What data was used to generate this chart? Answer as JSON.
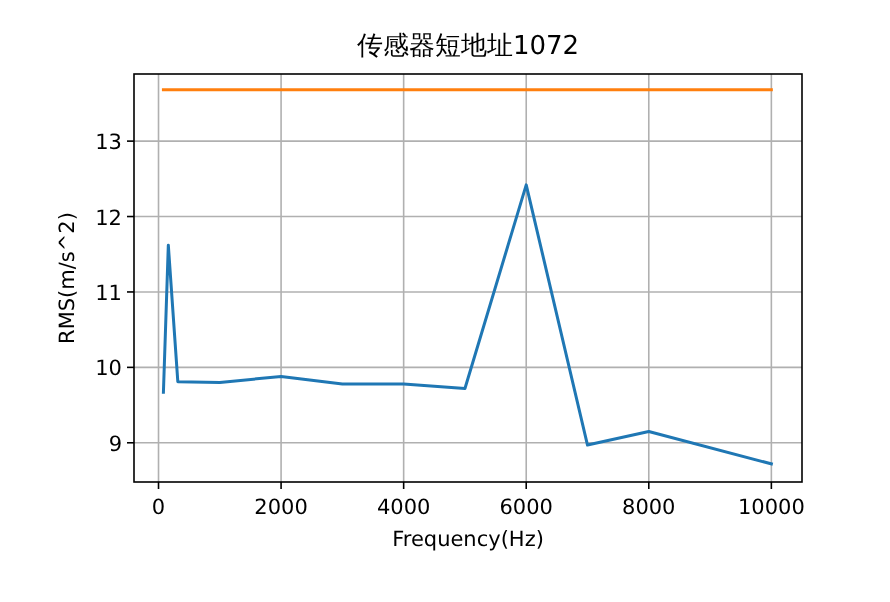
{
  "chart_data": {
    "type": "line",
    "title": "传感器短地址1072",
    "xlabel": "Frequency(Hz)",
    "ylabel": "RMS(m/s^2)",
    "xlim": [
      -400,
      10500
    ],
    "ylim": [
      8.48,
      13.89
    ],
    "xticks": [
      0,
      2000,
      4000,
      6000,
      8000,
      10000
    ],
    "yticks": [
      9,
      10,
      11,
      12,
      13
    ],
    "grid": true,
    "series": [
      {
        "color": "#1f77b4",
        "x": [
          80,
          160,
          315,
          1000,
          2000,
          3000,
          4000,
          5000,
          6000,
          7000,
          8000,
          10000
        ],
        "values": [
          9.67,
          11.62,
          9.81,
          9.8,
          9.88,
          9.78,
          9.78,
          9.72,
          12.42,
          8.97,
          9.15,
          8.72
        ]
      },
      {
        "color": "#ff7f0e",
        "x": [
          80,
          10000
        ],
        "values": [
          13.68,
          13.68
        ]
      }
    ]
  }
}
